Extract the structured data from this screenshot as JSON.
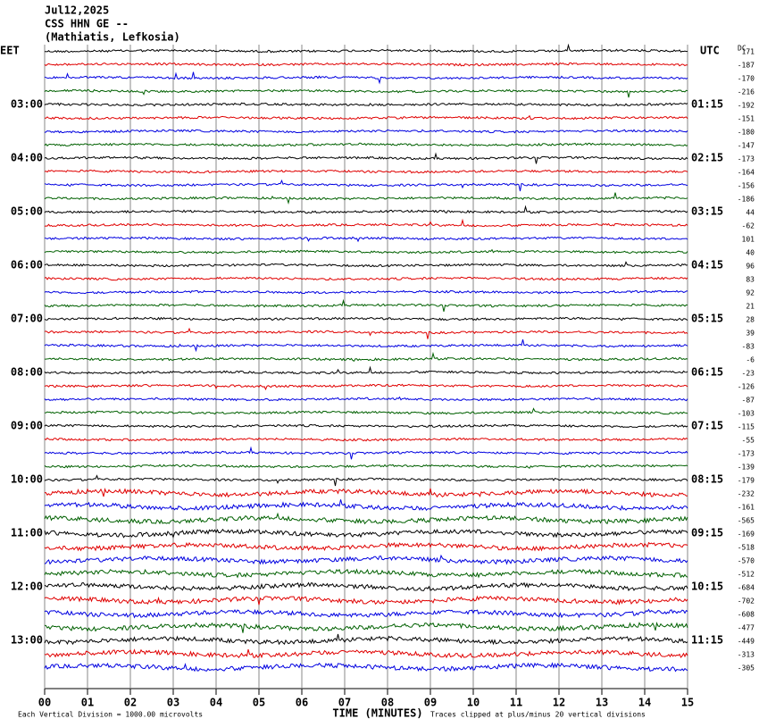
{
  "header": {
    "lines": [
      "Jul12,2025",
      "CSS HHN GE --",
      "(Mathiatis, Lefkosia)"
    ]
  },
  "left_labels": [
    "EET",
    "03:00",
    "04:00",
    "05:00",
    "06:00",
    "07:00",
    "08:00",
    "09:00",
    "10:00",
    "11:00",
    "12:00",
    "13:00"
  ],
  "right_labels": [
    "UTC",
    "01:15",
    "02:15",
    "03:15",
    "04:15",
    "05:15",
    "06:15",
    "07:15",
    "08:15",
    "09:15",
    "10:15",
    "11:15"
  ],
  "dc_label": "DC",
  "dc_offsets": [
    171,
    -187,
    -170,
    -216,
    -192,
    -151,
    -180,
    -147,
    -173,
    -164,
    -156,
    -186,
    44,
    -62,
    101,
    40,
    96,
    83,
    92,
    21,
    28,
    39,
    -83,
    -6,
    -23,
    -126,
    -87,
    -103,
    -115,
    -55,
    -173,
    -139,
    -179,
    -232,
    -161,
    -565,
    -169,
    -518,
    -570,
    -512,
    -684,
    -702,
    -608,
    -477,
    -449,
    -313,
    -305
  ],
  "x_axis": {
    "labels": [
      "00",
      "01",
      "02",
      "03",
      "04",
      "05",
      "06",
      "07",
      "08",
      "09",
      "10",
      "11",
      "12",
      "13",
      "14",
      "15"
    ],
    "title": "TIME (MINUTES)"
  },
  "footer": {
    "left": "Each Vertical Division = 1000.00 microvolts",
    "right": "Traces clipped at plus/minus 20 vertical divisions"
  }
}
